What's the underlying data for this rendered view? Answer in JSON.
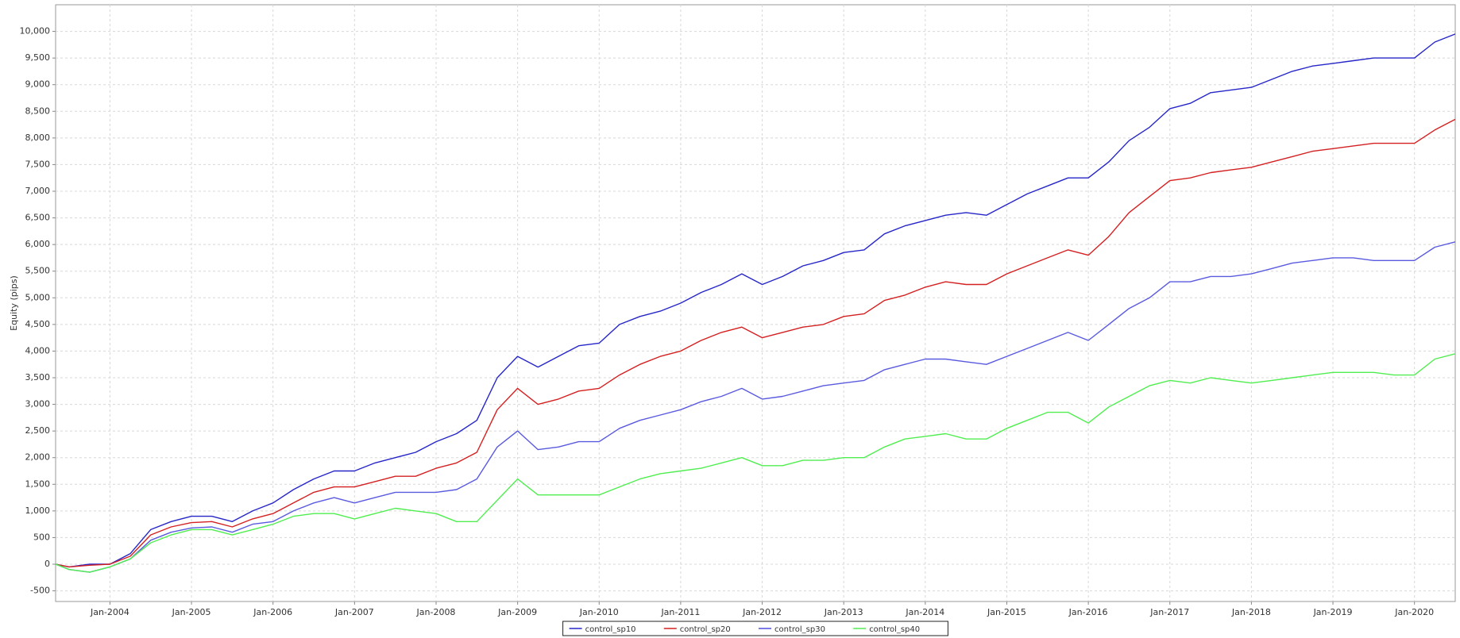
{
  "chart_data": {
    "type": "line",
    "y_label": "Equity (pips)",
    "x": [
      "2003-05",
      "2003-07",
      "2003-10",
      "2004-01",
      "2004-04",
      "2004-07",
      "2004-10",
      "2005-01",
      "2005-04",
      "2005-07",
      "2005-10",
      "2006-01",
      "2006-04",
      "2006-07",
      "2006-10",
      "2007-01",
      "2007-04",
      "2007-07",
      "2007-10",
      "2008-01",
      "2008-04",
      "2008-07",
      "2008-10",
      "2009-01",
      "2009-04",
      "2009-07",
      "2009-10",
      "2010-01",
      "2010-04",
      "2010-07",
      "2010-10",
      "2011-01",
      "2011-04",
      "2011-07",
      "2011-10",
      "2012-01",
      "2012-04",
      "2012-07",
      "2012-10",
      "2013-01",
      "2013-04",
      "2013-07",
      "2013-10",
      "2014-01",
      "2014-04",
      "2014-07",
      "2014-10",
      "2015-01",
      "2015-04",
      "2015-07",
      "2015-10",
      "2016-01",
      "2016-04",
      "2016-07",
      "2016-10",
      "2017-01",
      "2017-04",
      "2017-07",
      "2017-10",
      "2018-01",
      "2018-04",
      "2018-07",
      "2018-10",
      "2019-01",
      "2019-04",
      "2019-07",
      "2019-10",
      "2020-01",
      "2020-04",
      "2020-07"
    ],
    "series": [
      {
        "name": "control_sp10",
        "color": "#2626c8",
        "values": [
          0,
          -50,
          0,
          0,
          200,
          650,
          800,
          900,
          900,
          800,
          1000,
          1150,
          1400,
          1600,
          1750,
          1750,
          1900,
          2000,
          2100,
          2300,
          2450,
          2700,
          3500,
          3900,
          3700,
          3900,
          4100,
          4150,
          4500,
          4650,
          4750,
          4900,
          5100,
          5250,
          5450,
          5250,
          5400,
          5600,
          5700,
          5850,
          5900,
          6200,
          6350,
          6450,
          6550,
          6600,
          6550,
          6750,
          6950,
          7100,
          7250,
          7250,
          7550,
          7950,
          8200,
          8550,
          8650,
          8850,
          8900,
          8950,
          9100,
          9250,
          9350,
          9400,
          9450,
          9500,
          9500,
          9500,
          9800,
          9950
        ]
      },
      {
        "name": "control_sp20",
        "color": "#d42020",
        "values": [
          0,
          -50,
          -20,
          0,
          150,
          550,
          700,
          780,
          800,
          700,
          850,
          950,
          1150,
          1350,
          1450,
          1450,
          1550,
          1650,
          1650,
          1800,
          1900,
          2100,
          2900,
          3300,
          3000,
          3100,
          3250,
          3300,
          3550,
          3750,
          3900,
          4000,
          4200,
          4350,
          4450,
          4250,
          4350,
          4450,
          4500,
          4650,
          4700,
          4950,
          5050,
          5200,
          5300,
          5250,
          5250,
          5450,
          5600,
          5750,
          5900,
          5800,
          6150,
          6600,
          6900,
          7200,
          7250,
          7350,
          7400,
          7450,
          7550,
          7650,
          7750,
          7800,
          7850,
          7900,
          7900,
          7900,
          8150,
          8350
        ]
      },
      {
        "name": "control_sp30",
        "color": "#5a5ae0",
        "values": [
          0,
          -100,
          -150,
          -50,
          100,
          450,
          600,
          680,
          700,
          600,
          750,
          800,
          1000,
          1150,
          1250,
          1150,
          1250,
          1350,
          1350,
          1350,
          1400,
          1600,
          2200,
          2500,
          2150,
          2200,
          2300,
          2300,
          2550,
          2700,
          2800,
          2900,
          3050,
          3150,
          3300,
          3100,
          3150,
          3250,
          3350,
          3400,
          3450,
          3650,
          3750,
          3850,
          3850,
          3800,
          3750,
          3900,
          4050,
          4200,
          4350,
          4200,
          4500,
          4800,
          5000,
          5300,
          5300,
          5400,
          5400,
          5450,
          5550,
          5650,
          5700,
          5750,
          5750,
          5700,
          5700,
          5700,
          5950,
          6050
        ]
      },
      {
        "name": "control_sp40",
        "color": "#50ee50",
        "values": [
          0,
          -100,
          -150,
          -50,
          100,
          400,
          550,
          650,
          650,
          550,
          650,
          750,
          900,
          950,
          950,
          850,
          950,
          1050,
          1000,
          950,
          800,
          800,
          1200,
          1600,
          1300,
          1300,
          1300,
          1300,
          1450,
          1600,
          1700,
          1750,
          1800,
          1900,
          2000,
          1850,
          1850,
          1950,
          1950,
          2000,
          2000,
          2200,
          2350,
          2400,
          2450,
          2350,
          2350,
          2550,
          2700,
          2850,
          2850,
          2650,
          2950,
          3150,
          3350,
          3450,
          3400,
          3500,
          3450,
          3400,
          3450,
          3500,
          3550,
          3600,
          3600,
          3600,
          3550,
          3550,
          3850,
          3950
        ]
      }
    ],
    "xlim": [
      "2003-05",
      "2020-07"
    ],
    "xticks": [
      {
        "value": "2004-01",
        "label": "Jan-2004"
      },
      {
        "value": "2005-01",
        "label": "Jan-2005"
      },
      {
        "value": "2006-01",
        "label": "Jan-2006"
      },
      {
        "value": "2007-01",
        "label": "Jan-2007"
      },
      {
        "value": "2008-01",
        "label": "Jan-2008"
      },
      {
        "value": "2009-01",
        "label": "Jan-2009"
      },
      {
        "value": "2010-01",
        "label": "Jan-2010"
      },
      {
        "value": "2011-01",
        "label": "Jan-2011"
      },
      {
        "value": "2012-01",
        "label": "Jan-2012"
      },
      {
        "value": "2013-01",
        "label": "Jan-2013"
      },
      {
        "value": "2014-01",
        "label": "Jan-2014"
      },
      {
        "value": "2015-01",
        "label": "Jan-2015"
      },
      {
        "value": "2016-01",
        "label": "Jan-2016"
      },
      {
        "value": "2017-01",
        "label": "Jan-2017"
      },
      {
        "value": "2018-01",
        "label": "Jan-2018"
      },
      {
        "value": "2019-01",
        "label": "Jan-2019"
      },
      {
        "value": "2020-01",
        "label": "Jan-2020"
      }
    ],
    "ylim": [
      -700,
      10500
    ],
    "yticks": [
      -500,
      0,
      500,
      {
        "value": 1000,
        "label": "1,000"
      },
      {
        "value": 1500,
        "label": "1,500"
      },
      {
        "value": 2000,
        "label": "2,000"
      },
      {
        "value": 2500,
        "label": "2,500"
      },
      {
        "value": 3000,
        "label": "3,000"
      },
      {
        "value": 3500,
        "label": "3,500"
      },
      {
        "value": 4000,
        "label": "4,000"
      },
      {
        "value": 4500,
        "label": "4,500"
      },
      {
        "value": 5000,
        "label": "5,000"
      },
      {
        "value": 5500,
        "label": "5,500"
      },
      {
        "value": 6000,
        "label": "6,000"
      },
      {
        "value": 6500,
        "label": "6,500"
      },
      {
        "value": 7000,
        "label": "7,000"
      },
      {
        "value": 7500,
        "label": "7,500"
      },
      {
        "value": 8000,
        "label": "8,000"
      },
      {
        "value": 8500,
        "label": "8,500"
      },
      {
        "value": 9000,
        "label": "9,000"
      },
      {
        "value": 9500,
        "label": "9,500"
      },
      {
        "value": 10000,
        "label": "10,000"
      }
    ],
    "grid": true,
    "legend": "bottom"
  }
}
